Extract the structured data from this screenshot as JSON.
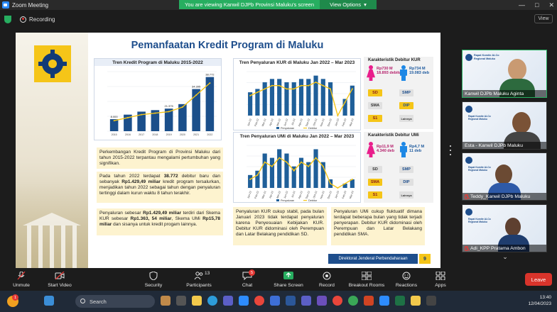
{
  "window": {
    "title": "Zoom Meeting",
    "banner": "You are viewing Kanwil DJPb Provinsi Maluku's screen",
    "view_options": "View Options",
    "controls": [
      "—",
      "□",
      "✕"
    ]
  },
  "recording": {
    "label": "Recording",
    "view_button": "View"
  },
  "slide": {
    "title": "Pemanfaatan Kredit Program di Maluku",
    "chart1_title": "Tren Kredit Program di Maluku 2015-2022",
    "chart2_title": "Tren Penyaluran KUR di Maluku Jan 2022 – Mar 2023",
    "chart3_title": "Tren Penyaluran UMi di Maluku Jan 2022 – Mar 2023",
    "para1": "Perkembangan Kredit Program di Provinsi Maluku dari tahun 2015-2022 terpantau mengalami pertumbuhan yang signifikan.",
    "para2_a": "Pada tahun 2022 terdapat ",
    "para2_b": "38.772",
    "para2_c": " debitur baru dan sebanyak ",
    "para2_d": "Rp1.429,49 miliar",
    "para2_e": " kredit program tersalurkan, menjadikan tahun 2022 sebagai tahun dengan penyaluran tertinggi dalam kurun waktu 8 tahun terakhir.",
    "para3_a": "Penyaluran sebesar ",
    "para3_b": "Rp1.429,49 miliar",
    "para3_c": " terdiri dari Skema KUR sebesar ",
    "para3_d": "Rp1.363, 54 miliar",
    "para3_e": ", Skema UMi ",
    "para3_f": "Rp15,78 miliar",
    "para3_g": " dan sisanya untuk kredit progam lainnya.",
    "para4": "Penyaluran KUR cukup stabil, pada bulan Januari 2023 tidak terdapat penyaluran karena Penyesuaian Kebijakan KUR. Debitur KUR didominasi oleh Perempuan dan Latar Belakang pendidikan SD.",
    "para5": "Penyaluran UMi cukup fluktuatif dimana terdapat beberapa bulan yang tidak terjadi penyerapan. Debitur KUR didominasi oleh Perempuan dan Latar Belakang pendidikan SMA.",
    "kur_char_title": "Karakteristik Debitur KUR",
    "umi_char_title": "Karakteristik Debitur UMi",
    "kur_female": [
      "Rp730 M",
      "18.893 debitur"
    ],
    "kur_male": [
      "Rp734 M",
      "19.083 deb"
    ],
    "umi_female": [
      "Rp11,9 M",
      "4.340 deb"
    ],
    "umi_male": [
      "Rp4,7 M",
      "11 deb"
    ],
    "edu_labels": [
      "SD",
      "SMP",
      "SMA",
      "DIP",
      "S1",
      "Lainnya"
    ],
    "footer": "Direktorat Jenderal Perbendaharaan",
    "page": "9",
    "legend_kur_a": "Penyaluran",
    "legend_kur_b": "Debitur"
  },
  "chart_data": [
    {
      "type": "bar",
      "title": "Tren Kredit Program di Maluku 2015-2022",
      "categories": [
        "2015",
        "2016",
        "2017",
        "2018",
        "2019",
        "2020",
        "2021",
        "2022"
      ],
      "series": [
        {
          "name": "Nilai",
          "values": [
            4,
            5.5,
            6.5,
            7,
            7.5,
            9,
            14,
            18
          ]
        },
        {
          "name": "Debitur",
          "values": [
            3.5,
            4.5,
            5.5,
            6,
            6.5,
            8,
            12,
            16
          ]
        }
      ],
      "labels": [
        "8.000",
        "",
        "",
        "",
        "21.375",
        "",
        "34.395",
        "38.772"
      ]
    },
    {
      "type": "bar",
      "title": "Tren Penyaluran KUR di Maluku Jan 2022 – Mar 2023",
      "categories": [
        "Jan-22",
        "Feb-22",
        "Mar-22",
        "Apr-22",
        "Mei-22",
        "Jun-22",
        "Jul-22",
        "Agu-22",
        "Sep-22",
        "Okt-22",
        "Nov-22",
        "Des-22",
        "Jan-23",
        "Feb-23",
        "Mar-23"
      ],
      "series": [
        {
          "name": "Penyaluran",
          "values": [
            7,
            8,
            10,
            11,
            11,
            10,
            10,
            11,
            11,
            12,
            11,
            10,
            0,
            5,
            9
          ]
        },
        {
          "name": "Debitur",
          "values": [
            6,
            7,
            8,
            9,
            9,
            8,
            8,
            9,
            9,
            10,
            9,
            8,
            0,
            4,
            8
          ]
        }
      ]
    },
    {
      "type": "bar",
      "title": "Tren Penyaluran UMi di Maluku Jan 2022 – Mar 2023",
      "categories": [
        "Jan-22",
        "Feb-22",
        "Mar-22",
        "Apr-22",
        "Mei-22",
        "Jun-22",
        "Jul-22",
        "Agu-22",
        "Sep-22",
        "Okt-22",
        "Nov-22",
        "Des-22",
        "Jan-23",
        "Feb-23",
        "Mar-23"
      ],
      "series": [
        {
          "name": "Penyaluran",
          "values": [
            3,
            4,
            8,
            7,
            9,
            8,
            5,
            7,
            6,
            9,
            6,
            2,
            0,
            1,
            2
          ]
        },
        {
          "name": "Debitur",
          "values": [
            2,
            3,
            6,
            5,
            7,
            6,
            4,
            6,
            5,
            7,
            5,
            1,
            0,
            1,
            2
          ]
        }
      ]
    }
  ],
  "participants": [
    {
      "name": "Kanwil DJPb Maluku Aginta",
      "org": "Rapat Komite ALCo Regional Maluku"
    },
    {
      "name": "Esta - Kanwil DJPb Maluku",
      "org": "Rapat Komite ALCo Regional Maluku"
    },
    {
      "name": "Teddy_Kanwil DJPb Maluku",
      "org": "Rapat Komite ALCo Regional Maluku"
    },
    {
      "name": "Adi_KPP Pratama Ambon",
      "org": "Rapat Komite ALCo Regional Maluku"
    }
  ],
  "toolbar": {
    "unmute": "Unmute",
    "start_video": "Start Video",
    "security": "Security",
    "participants": "Participants",
    "participants_count": "13",
    "chat": "Chat",
    "chat_badge": "5",
    "share_screen": "Share Screen",
    "record": "Record",
    "breakout": "Breakout Rooms",
    "reactions": "Reactions",
    "apps": "Apps",
    "leave": "Leave"
  },
  "taskbar": {
    "search": "Search",
    "time": "13:40",
    "date": "12/04/2023",
    "weather_badge": "1"
  },
  "colors": {
    "accent_green": "#27ae60",
    "slide_blue": "#1e4e8c",
    "gold": "#f5c518",
    "leave_red": "#d9342b"
  }
}
